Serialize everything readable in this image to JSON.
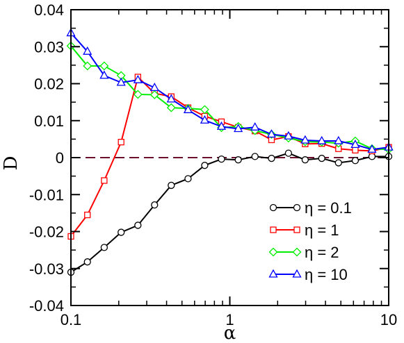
{
  "chart_data": {
    "type": "line",
    "xlabel": "α",
    "ylabel": "D",
    "x_scale": "log",
    "xlim": [
      0.1,
      10
    ],
    "ylim": [
      -0.04,
      0.04
    ],
    "x_ticks": [
      0.1,
      1,
      10
    ],
    "x_tick_labels": [
      "0.1",
      "1",
      "10"
    ],
    "y_ticks": [
      -0.04,
      -0.03,
      -0.02,
      -0.01,
      0,
      0.01,
      0.02,
      0.03,
      0.04
    ],
    "y_tick_labels": [
      "-0.04",
      "-0.03",
      "-0.02",
      "-0.01",
      "0",
      "0.01",
      "0.02",
      "0.03",
      "0.04"
    ],
    "legend_position": "bottom-right",
    "reference_line": {
      "y": 0,
      "style": "dashed",
      "color": "#6b0f2a"
    },
    "series": [
      {
        "name": "η = 0.1",
        "color": "#000000",
        "marker": "circle",
        "x": [
          0.1,
          0.127,
          0.162,
          0.207,
          0.264,
          0.336,
          0.428,
          0.546,
          0.695,
          0.886,
          1.13,
          1.44,
          1.83,
          2.34,
          2.98,
          3.79,
          4.83,
          6.16,
          7.85,
          10
        ],
        "y": [
          -0.031,
          -0.0282,
          -0.0243,
          -0.0202,
          -0.0183,
          -0.0128,
          -0.0075,
          -0.0057,
          -0.0021,
          -0.0004,
          -0.0006,
          0.0003,
          -0.0002,
          0.0012,
          -0.0006,
          -0.0002,
          -0.0014,
          -0.0008,
          0.0003,
          0.0003
        ]
      },
      {
        "name": "η = 1",
        "color": "#ff0000",
        "marker": "square",
        "x": [
          0.1,
          0.127,
          0.162,
          0.207,
          0.264,
          0.336,
          0.428,
          0.546,
          0.695,
          0.886,
          1.13,
          1.44,
          1.83,
          2.34,
          2.98,
          3.79,
          4.83,
          6.16,
          7.85,
          10
        ],
        "y": [
          -0.0213,
          -0.0155,
          -0.0062,
          0.0042,
          0.0218,
          0.0174,
          0.0165,
          0.0135,
          0.0112,
          0.0097,
          0.0082,
          0.0072,
          0.0048,
          0.0057,
          0.0037,
          0.0038,
          0.0024,
          0.002,
          0.0018,
          0.0028
        ]
      },
      {
        "name": "η = 2",
        "color": "#00ee00",
        "marker": "diamond",
        "x": [
          0.1,
          0.127,
          0.162,
          0.207,
          0.264,
          0.336,
          0.428,
          0.546,
          0.695,
          0.886,
          1.13,
          1.44,
          1.83,
          2.34,
          2.98,
          3.79,
          4.83,
          6.16,
          7.85,
          10
        ],
        "y": [
          0.0302,
          0.0248,
          0.0248,
          0.0222,
          0.0171,
          0.017,
          0.0135,
          0.0133,
          0.013,
          0.0081,
          0.0084,
          0.0073,
          0.0063,
          0.0053,
          0.0043,
          0.0042,
          0.0039,
          0.0045,
          0.0024,
          0.0022
        ]
      },
      {
        "name": "η = 10",
        "color": "#0000ff",
        "marker": "triangle",
        "x": [
          0.1,
          0.127,
          0.162,
          0.207,
          0.264,
          0.336,
          0.428,
          0.546,
          0.695,
          0.886,
          1.13,
          1.44,
          1.83,
          2.34,
          2.98,
          3.79,
          4.83,
          6.16,
          7.85,
          10
        ],
        "y": [
          0.0337,
          0.0287,
          0.0222,
          0.0203,
          0.021,
          0.0189,
          0.0158,
          0.0129,
          0.0101,
          0.0084,
          0.0078,
          0.0082,
          0.0063,
          0.0058,
          0.0047,
          0.0045,
          0.0045,
          0.0035,
          0.0022,
          0.0028
        ]
      }
    ]
  }
}
